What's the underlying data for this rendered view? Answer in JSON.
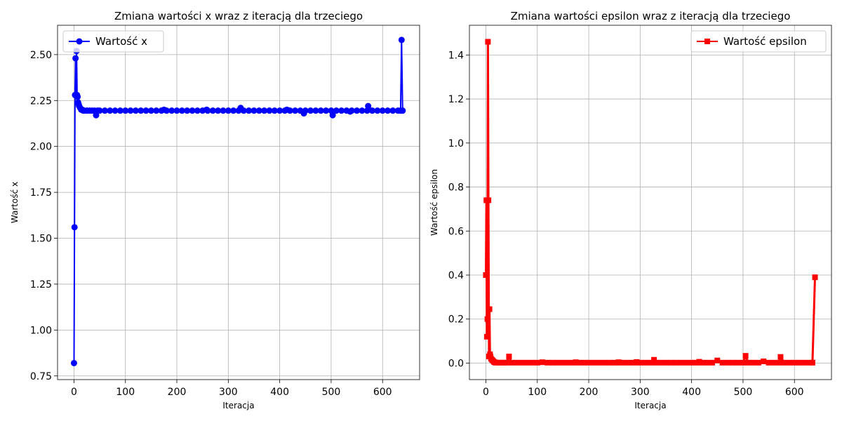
{
  "chart_data": [
    {
      "type": "line",
      "title": "Zmiana wartości x wraz z iteracją dla trzeciego",
      "xlabel": "Iteracja",
      "ylabel": "Wartość x",
      "xlim": [
        -32,
        672
      ],
      "ylim": [
        0.73,
        2.66
      ],
      "xticks": [
        0,
        100,
        200,
        300,
        400,
        500,
        600
      ],
      "yticks": [
        0.75,
        1.0,
        1.25,
        1.5,
        1.75,
        2.0,
        2.25,
        2.5
      ],
      "ytick_labels": [
        "0.75",
        "1.00",
        "1.25",
        "1.50",
        "1.75",
        "2.00",
        "2.25",
        "2.50"
      ],
      "grid": true,
      "legend_position": "upper-left",
      "series": [
        {
          "name": "Wartość x",
          "color": "#0000ff",
          "marker": "circle",
          "x": [
            0,
            1,
            2,
            3,
            4,
            5,
            6,
            7,
            8,
            9,
            10,
            12,
            14,
            16,
            18,
            20,
            25,
            30,
            35,
            40,
            43,
            46,
            50,
            60,
            70,
            80,
            90,
            100,
            110,
            120,
            130,
            140,
            150,
            160,
            170,
            175,
            180,
            190,
            200,
            210,
            220,
            230,
            240,
            250,
            258,
            260,
            270,
            280,
            290,
            300,
            310,
            320,
            324,
            330,
            340,
            350,
            360,
            370,
            380,
            390,
            400,
            410,
            414,
            420,
            430,
            440,
            447,
            450,
            460,
            470,
            480,
            490,
            500,
            503,
            510,
            520,
            530,
            537,
            540,
            550,
            560,
            570,
            572,
            580,
            590,
            600,
            610,
            620,
            630,
            635,
            637,
            639
          ],
          "y": [
            0.82,
            1.56,
            2.28,
            2.48,
            2.28,
            2.52,
            2.28,
            2.27,
            2.24,
            2.23,
            2.22,
            2.21,
            2.2,
            2.2,
            2.195,
            2.195,
            2.195,
            2.195,
            2.195,
            2.195,
            2.17,
            2.195,
            2.195,
            2.195,
            2.195,
            2.195,
            2.195,
            2.195,
            2.195,
            2.195,
            2.195,
            2.195,
            2.195,
            2.195,
            2.195,
            2.2,
            2.195,
            2.195,
            2.195,
            2.195,
            2.195,
            2.195,
            2.195,
            2.195,
            2.2,
            2.195,
            2.195,
            2.195,
            2.195,
            2.195,
            2.195,
            2.195,
            2.21,
            2.195,
            2.195,
            2.195,
            2.195,
            2.195,
            2.195,
            2.195,
            2.195,
            2.195,
            2.2,
            2.195,
            2.195,
            2.195,
            2.18,
            2.195,
            2.195,
            2.195,
            2.195,
            2.195,
            2.195,
            2.17,
            2.195,
            2.195,
            2.195,
            2.19,
            2.195,
            2.195,
            2.195,
            2.195,
            2.22,
            2.195,
            2.195,
            2.195,
            2.195,
            2.195,
            2.195,
            2.195,
            2.58,
            2.195
          ]
        }
      ]
    },
    {
      "type": "line",
      "title": "Zmiana wartości epsilon wraz z iteracją dla trzeciego",
      "xlabel": "Iteracja",
      "ylabel": "Wartość epsilon",
      "xlim": [
        -32,
        672
      ],
      "ylim": [
        -0.075,
        1.535
      ],
      "xticks": [
        0,
        100,
        200,
        300,
        400,
        500,
        600
      ],
      "yticks": [
        0.0,
        0.2,
        0.4,
        0.6,
        0.8,
        1.0,
        1.2,
        1.4
      ],
      "ytick_labels": [
        "0.0",
        "0.2",
        "0.4",
        "0.6",
        "0.8",
        "1.0",
        "1.2",
        "1.4"
      ],
      "grid": true,
      "legend_position": "upper-right",
      "series": [
        {
          "name": "Wartość epsilon",
          "color": "#ff0000",
          "marker": "square",
          "x": [
            0,
            1,
            2,
            3,
            4,
            5,
            6,
            7,
            8,
            9,
            10,
            12,
            14,
            16,
            18,
            20,
            25,
            30,
            35,
            40,
            45,
            50,
            60,
            70,
            80,
            90,
            100,
            110,
            120,
            130,
            140,
            150,
            160,
            170,
            175,
            180,
            190,
            200,
            210,
            220,
            230,
            240,
            250,
            258,
            260,
            270,
            280,
            290,
            293,
            300,
            310,
            320,
            327,
            330,
            340,
            350,
            360,
            370,
            380,
            390,
            400,
            410,
            415,
            420,
            430,
            440,
            450,
            460,
            470,
            480,
            490,
            500,
            505,
            510,
            520,
            530,
            540,
            550,
            560,
            570,
            573,
            580,
            590,
            600,
            610,
            620,
            630,
            635,
            640
          ],
          "y": [
            0.4,
            0.74,
            0.12,
            0.2,
            1.46,
            0.74,
            0.03,
            0.245,
            0.04,
            0.03,
            0.02,
            0.015,
            0.01,
            0.005,
            0.003,
            0.002,
            0.002,
            0.002,
            0.002,
            0.002,
            0.03,
            0.002,
            0.002,
            0.002,
            0.002,
            0.002,
            0.002,
            0.004,
            0.002,
            0.002,
            0.002,
            0.002,
            0.002,
            0.002,
            0.004,
            0.002,
            0.002,
            0.002,
            0.002,
            0.002,
            0.002,
            0.002,
            0.002,
            0.004,
            0.002,
            0.002,
            0.002,
            0.002,
            0.005,
            0.002,
            0.002,
            0.002,
            0.015,
            0.002,
            0.002,
            0.002,
            0.002,
            0.002,
            0.002,
            0.002,
            0.002,
            0.002,
            0.006,
            0.002,
            0.002,
            0.002,
            0.012,
            0.002,
            0.002,
            0.002,
            0.002,
            0.002,
            0.033,
            0.002,
            0.002,
            0.002,
            0.008,
            0.002,
            0.002,
            0.002,
            0.028,
            0.002,
            0.002,
            0.002,
            0.002,
            0.002,
            0.002,
            0.002,
            0.39
          ]
        }
      ]
    }
  ]
}
